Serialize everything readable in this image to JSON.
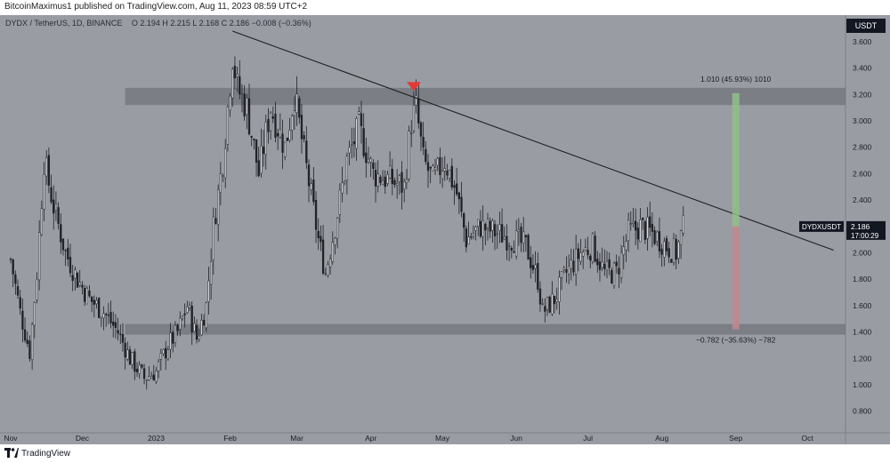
{
  "header": {
    "publisher_line": "BitcoinMaximus1 published on TradingView.com, Aug 11, 2023 08:59 UTC+2"
  },
  "footer": {
    "brand": "TradingView"
  },
  "legend": {
    "symbol": "DYDX / TetherUS, 1D, BINANCE",
    "ohlc": "O 2.194  H 2.215  L 2.168  C 2.186  −0.008 (−0.36%)"
  },
  "currency_label": "USDT",
  "price_tag": {
    "symbol": "DYDXUSDT",
    "price": "2.186",
    "countdown": "17:00:29"
  },
  "colors": {
    "background": "#9a9ca4",
    "candle": "#1f2126",
    "zone": "#72747c",
    "trendline": "#1e1e1e",
    "marker": "#e53935",
    "up_range": "#8fbf87",
    "down_range": "#c08a8e",
    "tag_bg": "#131722"
  },
  "chart_data": {
    "type": "candlestick",
    "title": "DYDX / TetherUS, 1D, BINANCE",
    "y_axis": {
      "ticks": [
        "0.800",
        "1.000",
        "1.200",
        "1.400",
        "1.600",
        "1.800",
        "2.000",
        "2.200",
        "2.400",
        "2.600",
        "2.800",
        "3.000",
        "3.200",
        "3.400",
        "3.600"
      ],
      "range": [
        0.7,
        3.8
      ],
      "position": "right",
      "grid": false
    },
    "x_axis": {
      "ticks": [
        "Nov",
        "Dec",
        "2023",
        "Feb",
        "Mar",
        "Apr",
        "May",
        "Jun",
        "Jul",
        "Aug",
        "Sep",
        "Oct"
      ],
      "range": [
        "2022-11-01",
        "2023-10-15"
      ]
    },
    "close_path": [
      [
        "2022-11-01",
        1.95
      ],
      [
        "2022-11-05",
        1.55
      ],
      [
        "2022-11-09",
        1.25
      ],
      [
        "2022-11-12",
        1.85
      ],
      [
        "2022-11-15",
        2.7
      ],
      [
        "2022-11-19",
        2.35
      ],
      [
        "2022-11-24",
        2.0
      ],
      [
        "2022-11-29",
        1.8
      ],
      [
        "2022-12-04",
        1.65
      ],
      [
        "2022-12-10",
        1.55
      ],
      [
        "2022-12-16",
        1.4
      ],
      [
        "2022-12-21",
        1.2
      ],
      [
        "2022-12-27",
        1.05
      ],
      [
        "2023-01-01",
        1.1
      ],
      [
        "2023-01-06",
        1.3
      ],
      [
        "2023-01-10",
        1.4
      ],
      [
        "2023-01-14",
        1.6
      ],
      [
        "2023-01-18",
        1.35
      ],
      [
        "2023-01-22",
        1.6
      ],
      [
        "2023-01-25",
        2.2
      ],
      [
        "2023-01-29",
        2.7
      ],
      [
        "2023-02-02",
        3.5
      ],
      [
        "2023-02-04",
        3.25
      ],
      [
        "2023-02-08",
        3.1
      ],
      [
        "2023-02-13",
        2.6
      ],
      [
        "2023-02-18",
        3.1
      ],
      [
        "2023-02-24",
        2.8
      ],
      [
        "2023-02-28",
        3.2
      ],
      [
        "2023-03-04",
        2.75
      ],
      [
        "2023-03-10",
        2.1
      ],
      [
        "2023-03-13",
        1.85
      ],
      [
        "2023-03-17",
        2.2
      ],
      [
        "2023-03-22",
        2.7
      ],
      [
        "2023-03-27",
        2.95
      ],
      [
        "2023-04-02",
        2.6
      ],
      [
        "2023-04-09",
        2.55
      ],
      [
        "2023-04-15",
        2.5
      ],
      [
        "2023-04-18",
        3.0
      ],
      [
        "2023-04-20",
        3.1
      ],
      [
        "2023-04-23",
        2.7
      ],
      [
        "2023-04-27",
        2.55
      ],
      [
        "2023-05-02",
        2.7
      ],
      [
        "2023-05-07",
        2.45
      ],
      [
        "2023-05-11",
        2.1
      ],
      [
        "2023-05-17",
        2.2
      ],
      [
        "2023-05-24",
        2.15
      ],
      [
        "2023-05-31",
        2.1
      ],
      [
        "2023-06-05",
        2.05
      ],
      [
        "2023-06-10",
        1.8
      ],
      [
        "2023-06-12",
        1.55
      ],
      [
        "2023-06-17",
        1.65
      ],
      [
        "2023-06-22",
        1.85
      ],
      [
        "2023-06-28",
        2.0
      ],
      [
        "2023-07-03",
        2.05
      ],
      [
        "2023-07-08",
        1.85
      ],
      [
        "2023-07-13",
        1.85
      ],
      [
        "2023-07-18",
        2.15
      ],
      [
        "2023-07-23",
        2.2
      ],
      [
        "2023-07-28",
        2.15
      ],
      [
        "2023-08-03",
        2.05
      ],
      [
        "2023-08-07",
        2.0
      ],
      [
        "2023-08-10",
        2.186
      ]
    ],
    "zones": [
      {
        "name": "resistance",
        "from": 3.12,
        "to": 3.25,
        "start": "2022-12-19"
      },
      {
        "name": "support",
        "from": 1.38,
        "to": 1.46,
        "start": "2022-12-19"
      }
    ],
    "trendline": {
      "start": [
        "2023-02-02",
        3.68
      ],
      "end": [
        "2023-10-12",
        2.02
      ]
    },
    "marker": {
      "date": "2023-04-19",
      "value": 3.24,
      "shape": "triangle-down"
    },
    "measurements": [
      {
        "label": "1.010 (45.93%) 1010",
        "from": 2.2,
        "to": 3.21,
        "date": "2023-09-01",
        "direction": "up"
      },
      {
        "label": "−0.782 (−35.63%) −782",
        "from": 2.2,
        "to": 1.42,
        "date": "2023-09-01",
        "direction": "down"
      }
    ],
    "last_price": 2.186
  }
}
